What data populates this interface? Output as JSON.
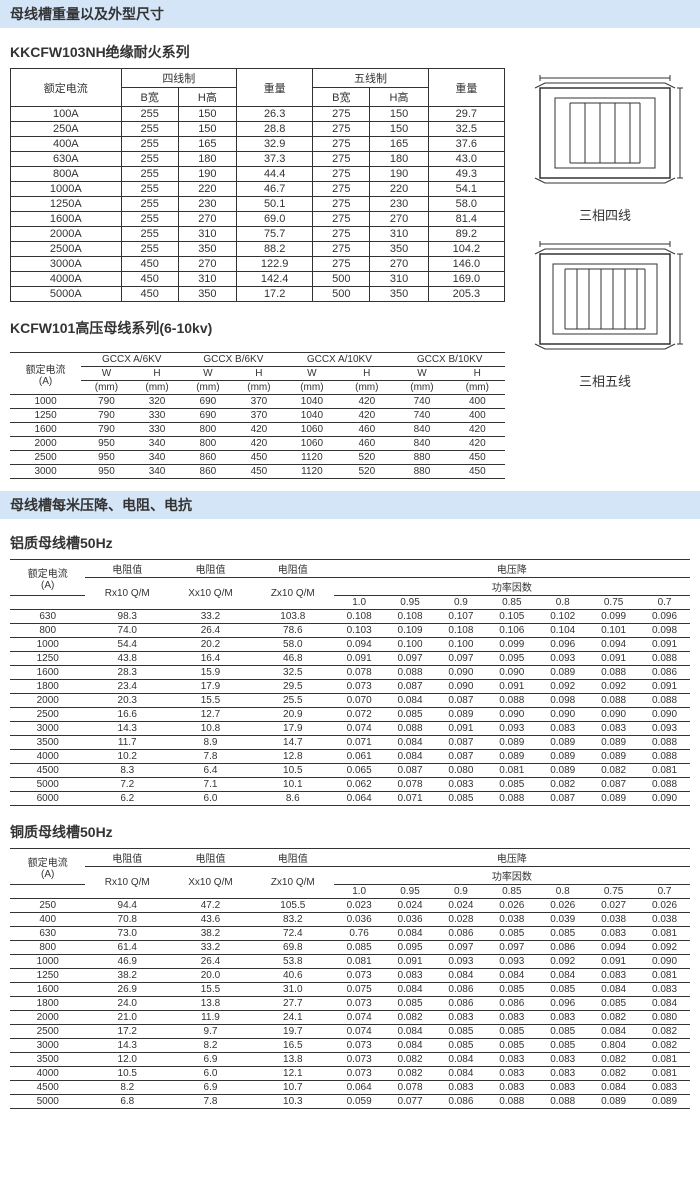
{
  "header1": "母线槽重量以及外型尺寸",
  "series1_title": "KKCFW103NH绝缘耐火系列",
  "t1": {
    "h_current": "额定电流",
    "h_4wire": "四线制",
    "h_5wire": "五线制",
    "h_weight": "重量",
    "h_bw": "B宽",
    "h_hh": "H高",
    "rows": [
      [
        "100A",
        "255",
        "150",
        "26.3",
        "275",
        "150",
        "29.7"
      ],
      [
        "250A",
        "255",
        "150",
        "28.8",
        "275",
        "150",
        "32.5"
      ],
      [
        "400A",
        "255",
        "165",
        "32.9",
        "275",
        "165",
        "37.6"
      ],
      [
        "630A",
        "255",
        "180",
        "37.3",
        "275",
        "180",
        "43.0"
      ],
      [
        "800A",
        "255",
        "190",
        "44.4",
        "275",
        "190",
        "49.3"
      ],
      [
        "1000A",
        "255",
        "220",
        "46.7",
        "275",
        "220",
        "54.1"
      ],
      [
        "1250A",
        "255",
        "230",
        "50.1",
        "275",
        "230",
        "58.0"
      ],
      [
        "1600A",
        "255",
        "270",
        "69.0",
        "275",
        "270",
        "81.4"
      ],
      [
        "2000A",
        "255",
        "310",
        "75.7",
        "275",
        "310",
        "89.2"
      ],
      [
        "2500A",
        "255",
        "350",
        "88.2",
        "275",
        "350",
        "104.2"
      ],
      [
        "3000A",
        "450",
        "270",
        "122.9",
        "275",
        "270",
        "146.0"
      ],
      [
        "4000A",
        "450",
        "310",
        "142.4",
        "500",
        "310",
        "169.0"
      ],
      [
        "5000A",
        "450",
        "350",
        "17.2",
        "500",
        "350",
        "205.3"
      ]
    ]
  },
  "series2_title": "KCFW101高压母线系列(6-10kv)",
  "t2": {
    "h_current": "额定电流",
    "h_unit": "(A)",
    "h_a6": "GCCX A/6KV",
    "h_b6": "GCCX B/6KV",
    "h_a10": "GCCX A/10KV",
    "h_b10": "GCCX B/10KV",
    "h_w": "W",
    "h_h": "H",
    "h_mm": "(mm)",
    "rows": [
      [
        "1000",
        "790",
        "320",
        "690",
        "370",
        "1040",
        "420",
        "740",
        "400"
      ],
      [
        "1250",
        "790",
        "330",
        "690",
        "370",
        "1040",
        "420",
        "740",
        "400"
      ],
      [
        "1600",
        "790",
        "330",
        "800",
        "420",
        "1060",
        "460",
        "840",
        "420"
      ],
      [
        "2000",
        "950",
        "340",
        "800",
        "420",
        "1060",
        "460",
        "840",
        "420"
      ],
      [
        "2500",
        "950",
        "340",
        "860",
        "450",
        "1120",
        "520",
        "880",
        "450"
      ],
      [
        "3000",
        "950",
        "340",
        "860",
        "450",
        "1120",
        "520",
        "880",
        "450"
      ]
    ]
  },
  "diagram1_label": "三相四线",
  "diagram2_label": "三相五线",
  "header2": "母线槽每米压降、电阻、电抗",
  "al_title": "铝质母线槽50Hz",
  "cu_title": "铜质母线槽50Hz",
  "t3_headers": {
    "current": "额定电流",
    "unit": "(A)",
    "r": "电阻值",
    "x": "电阻值",
    "z": "电阻值",
    "r_unit": "Rx10 Q/M",
    "x_unit": "Xx10 Q/M",
    "z_unit": "Zx10 Q/M",
    "vdrop": "电压降",
    "pf": "功率因数",
    "pf_vals": [
      "1.0",
      "0.95",
      "0.9",
      "0.85",
      "0.8",
      "0.75",
      "0.7"
    ]
  },
  "t3_al": [
    [
      "630",
      "98.3",
      "33.2",
      "103.8",
      "0.108",
      "0.108",
      "0.107",
      "0.105",
      "0.102",
      "0.099",
      "0.096"
    ],
    [
      "800",
      "74.0",
      "26.4",
      "78.6",
      "0.103",
      "0.109",
      "0.108",
      "0.106",
      "0.104",
      "0.101",
      "0.098"
    ],
    [
      "1000",
      "54.4",
      "20.2",
      "58.0",
      "0.094",
      "0.100",
      "0.100",
      "0.099",
      "0.096",
      "0.094",
      "0.091"
    ],
    [
      "1250",
      "43.8",
      "16.4",
      "46.8",
      "0.091",
      "0.097",
      "0.097",
      "0.095",
      "0.093",
      "0.091",
      "0.088"
    ],
    [
      "1600",
      "28.3",
      "15.9",
      "32.5",
      "0.078",
      "0.088",
      "0.090",
      "0.090",
      "0.089",
      "0.088",
      "0.086"
    ],
    [
      "1800",
      "23.4",
      "17.9",
      "29.5",
      "0.073",
      "0.087",
      "0.090",
      "0.091",
      "0.092",
      "0.092",
      "0.091"
    ],
    [
      "2000",
      "20.3",
      "15.5",
      "25.5",
      "0.070",
      "0.084",
      "0.087",
      "0.088",
      "0.098",
      "0.088",
      "0.088"
    ],
    [
      "2500",
      "16.6",
      "12.7",
      "20.9",
      "0.072",
      "0.085",
      "0.089",
      "0.090",
      "0.090",
      "0.090",
      "0.090"
    ],
    [
      "3000",
      "14.3",
      "10.8",
      "17.9",
      "0.074",
      "0.088",
      "0.091",
      "0.093",
      "0.083",
      "0.083",
      "0.093"
    ],
    [
      "3500",
      "11.7",
      "8.9",
      "14.7",
      "0.071",
      "0.084",
      "0.087",
      "0.089",
      "0.089",
      "0.089",
      "0.088"
    ],
    [
      "4000",
      "10.2",
      "7.8",
      "12.8",
      "0.061",
      "0.084",
      "0.087",
      "0.089",
      "0.089",
      "0.089",
      "0.088"
    ],
    [
      "4500",
      "8.3",
      "6.4",
      "10.5",
      "0.065",
      "0.087",
      "0.080",
      "0.081",
      "0.089",
      "0.082",
      "0.081"
    ],
    [
      "5000",
      "7.2",
      "7.1",
      "10.1",
      "0.062",
      "0.078",
      "0.083",
      "0.085",
      "0.082",
      "0.087",
      "0.088"
    ],
    [
      "6000",
      "6.2",
      "6.0",
      "8.6",
      "0.064",
      "0.071",
      "0.085",
      "0.088",
      "0.087",
      "0.089",
      "0.090"
    ]
  ],
  "t3_cu": [
    [
      "250",
      "94.4",
      "47.2",
      "105.5",
      "0.023",
      "0.024",
      "0.024",
      "0.026",
      "0.026",
      "0.027",
      "0.026"
    ],
    [
      "400",
      "70.8",
      "43.6",
      "83.2",
      "0.036",
      "0.036",
      "0.028",
      "0.038",
      "0.039",
      "0.038",
      "0.038"
    ],
    [
      "630",
      "73.0",
      "38.2",
      "72.4",
      "0.76",
      "0.084",
      "0.086",
      "0.085",
      "0.085",
      "0.083",
      "0.081"
    ],
    [
      "800",
      "61.4",
      "33.2",
      "69.8",
      "0.085",
      "0.095",
      "0.097",
      "0.097",
      "0.086",
      "0.094",
      "0.092"
    ],
    [
      "1000",
      "46.9",
      "26.4",
      "53.8",
      "0.081",
      "0.091",
      "0.093",
      "0.093",
      "0.092",
      "0.091",
      "0.090"
    ],
    [
      "1250",
      "38.2",
      "20.0",
      "40.6",
      "0.073",
      "0.083",
      "0.084",
      "0.084",
      "0.084",
      "0.083",
      "0.081"
    ],
    [
      "1600",
      "26.9",
      "15.5",
      "31.0",
      "0.075",
      "0.084",
      "0.086",
      "0.085",
      "0.085",
      "0.084",
      "0.083"
    ],
    [
      "1800",
      "24.0",
      "13.8",
      "27.7",
      "0.073",
      "0.085",
      "0.086",
      "0.086",
      "0.096",
      "0.085",
      "0.084"
    ],
    [
      "2000",
      "21.0",
      "11.9",
      "24.1",
      "0.074",
      "0.082",
      "0.083",
      "0.083",
      "0.083",
      "0.082",
      "0.080"
    ],
    [
      "2500",
      "17.2",
      "9.7",
      "19.7",
      "0.074",
      "0.084",
      "0.085",
      "0.085",
      "0.085",
      "0.084",
      "0.082"
    ],
    [
      "3000",
      "14.3",
      "8.2",
      "16.5",
      "0.073",
      "0.084",
      "0.085",
      "0.085",
      "0.085",
      "0.804",
      "0.082"
    ],
    [
      "3500",
      "12.0",
      "6.9",
      "13.8",
      "0.073",
      "0.082",
      "0.084",
      "0.083",
      "0.083",
      "0.082",
      "0.081"
    ],
    [
      "4000",
      "10.5",
      "6.0",
      "12.1",
      "0.073",
      "0.082",
      "0.084",
      "0.083",
      "0.083",
      "0.082",
      "0.081"
    ],
    [
      "4500",
      "8.2",
      "6.9",
      "10.7",
      "0.064",
      "0.078",
      "0.083",
      "0.083",
      "0.083",
      "0.084",
      "0.083"
    ],
    [
      "5000",
      "6.8",
      "7.8",
      "10.3",
      "0.059",
      "0.077",
      "0.086",
      "0.088",
      "0.088",
      "0.089",
      "0.089"
    ]
  ]
}
